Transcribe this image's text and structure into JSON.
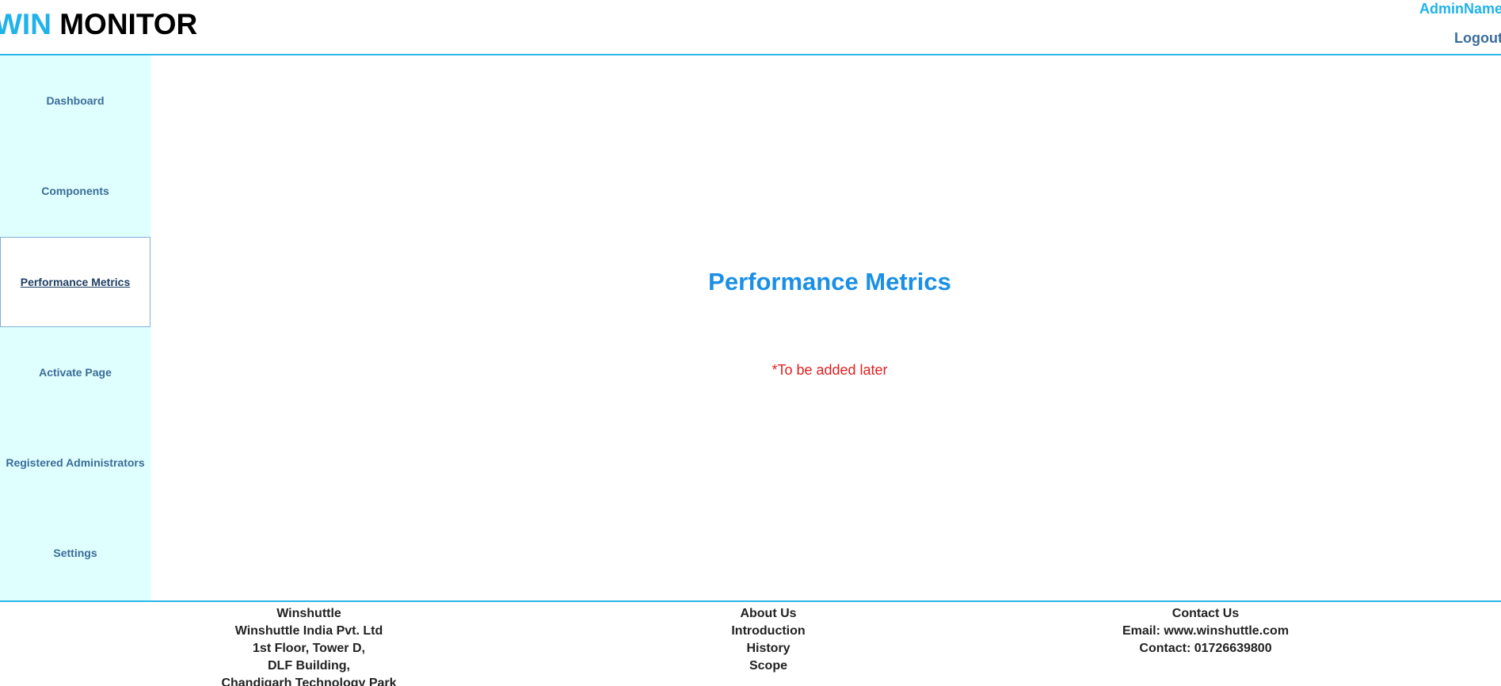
{
  "header": {
    "logo_win": "WIN",
    "logo_monitor": " MONITOR",
    "admin_name": "AdminName",
    "logout": "Logout"
  },
  "sidebar": {
    "items": [
      {
        "label": "Dashboard"
      },
      {
        "label": "Components"
      },
      {
        "label": "Performance Metrics",
        "active": true
      },
      {
        "label": "Activate Page"
      },
      {
        "label": "Registered Administrators"
      },
      {
        "label": "Settings"
      }
    ]
  },
  "main": {
    "title": "Performance Metrics",
    "note": "*To be added later"
  },
  "footer": {
    "company": {
      "heading": "Winshuttle",
      "lines": [
        "Winshuttle India Pvt. Ltd",
        "1st Floor, Tower D,",
        "DLF Building,",
        "Chandigarh Technology Park"
      ]
    },
    "about": {
      "heading": "About Us",
      "links": [
        "Introduction",
        "History",
        "Scope"
      ]
    },
    "contact": {
      "heading": "Contact Us",
      "email": "Email: www.winshuttle.com",
      "phone": "Contact: 01726639800"
    }
  },
  "colors": {
    "accent": "#1fb3ea",
    "sidebar_bg": "#dffefe",
    "nav_text": "#3b6d99",
    "title": "#1a8fe6",
    "note": "#e01f1f"
  }
}
